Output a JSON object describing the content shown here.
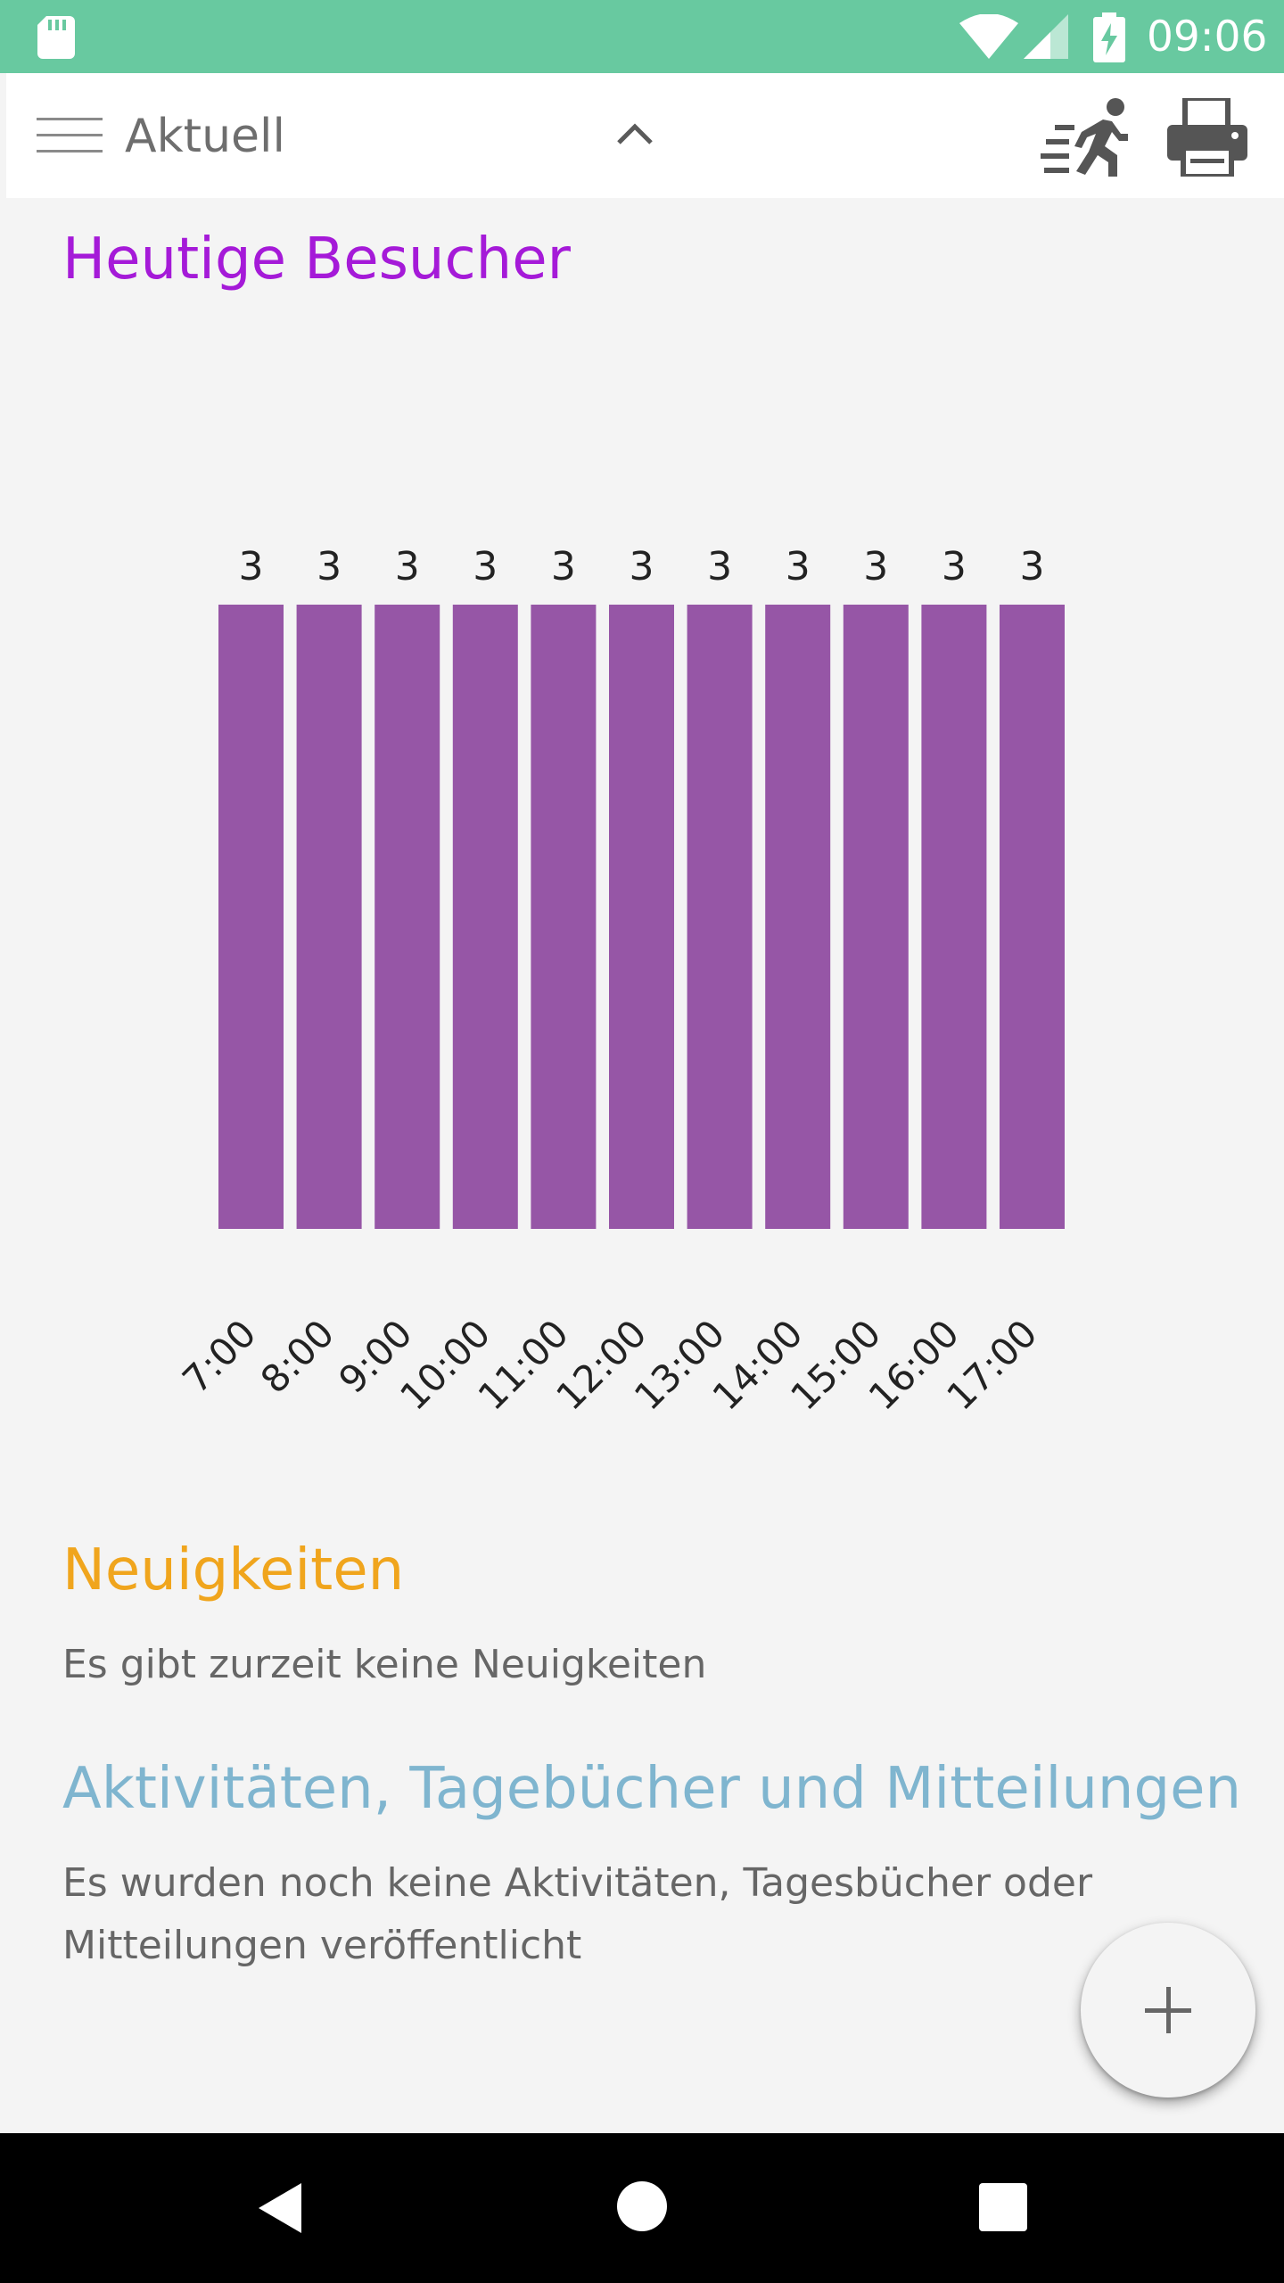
{
  "status_bar": {
    "time": "09:06",
    "icons": [
      "sd-card-icon",
      "wifi-icon",
      "signal-icon",
      "battery-charging-icon"
    ]
  },
  "app_bar": {
    "title": "Aktuell",
    "icons": [
      "menu-icon",
      "chevron-up-icon",
      "running-person-icon",
      "printer-icon"
    ]
  },
  "visitors": {
    "heading": "Heutige Besucher"
  },
  "chart_data": {
    "type": "bar",
    "title": "",
    "xlabel": "",
    "ylabel": "",
    "categories": [
      "7:00",
      "8:00",
      "9:00",
      "10:00",
      "11:00",
      "12:00",
      "13:00",
      "14:00",
      "15:00",
      "16:00",
      "17:00"
    ],
    "values": [
      3,
      3,
      3,
      3,
      3,
      3,
      3,
      3,
      3,
      3,
      3
    ],
    "data_labels": true,
    "ylim": [
      0,
      3
    ],
    "axes_visible": false,
    "grid": false,
    "bar_color": "#9656a6"
  },
  "news": {
    "heading": "Neuigkeiten",
    "text": "Es gibt zurzeit keine Neuigkeiten"
  },
  "activities": {
    "heading": "Aktivitäten, Tagebücher und Mitteilungen",
    "text": "Es wurden noch keine Aktivitäten, Tagesbücher oder Mitteilungen veröffentlicht"
  },
  "fab": {
    "icon": "plus-icon"
  },
  "nav_bar": {
    "icons": [
      "back-icon",
      "home-icon",
      "recents-icon"
    ]
  },
  "colors": {
    "status_bar": "#68c9a0",
    "visitors_heading": "#a51ad8",
    "news_heading": "#f0a51d",
    "activities_heading": "#7fb5cf",
    "bar": "#9656a6"
  }
}
